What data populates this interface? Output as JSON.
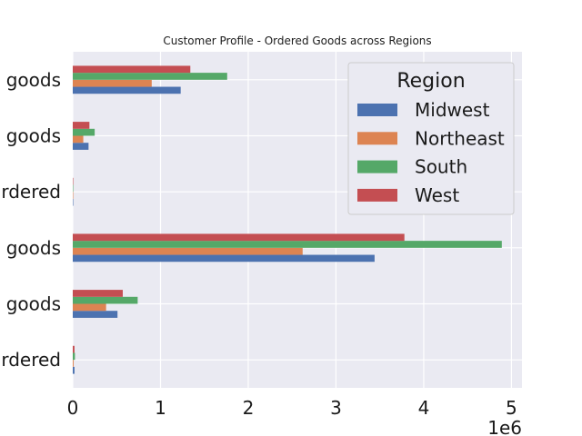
{
  "chart_data": {
    "type": "bar",
    "orientation": "horizontal",
    "title": "Customer Profile - Ordered Goods across Regions",
    "xlabel": "",
    "ylabel": "",
    "x_offset_text": "1e6",
    "xlim": [
      0,
      5120000
    ],
    "xticks": [
      0,
      1,
      2,
      3,
      4,
      5
    ],
    "grid": true,
    "legend": {
      "title": "Region",
      "position": "top-right"
    },
    "categories": [
      "…ordered",
      "…goods",
      "…goods",
      "…rdered",
      "…goods",
      "…goods"
    ],
    "category_tick_labels": [
      "rdered",
      "goods",
      "goods",
      "rdered",
      "goods",
      "goods"
    ],
    "series": [
      {
        "name": "Midwest",
        "color": "#4c72b0",
        "values": [
          20000,
          510000,
          3440000,
          3000,
          180000,
          1230000
        ]
      },
      {
        "name": "Northeast",
        "color": "#dd8452",
        "values": [
          10000,
          380000,
          2620000,
          3000,
          120000,
          900000
        ]
      },
      {
        "name": "South",
        "color": "#55a868",
        "values": [
          25000,
          740000,
          4890000,
          5000,
          250000,
          1760000
        ]
      },
      {
        "name": "West",
        "color": "#c44e52",
        "values": [
          20000,
          570000,
          3780000,
          3000,
          190000,
          1340000
        ]
      }
    ]
  }
}
